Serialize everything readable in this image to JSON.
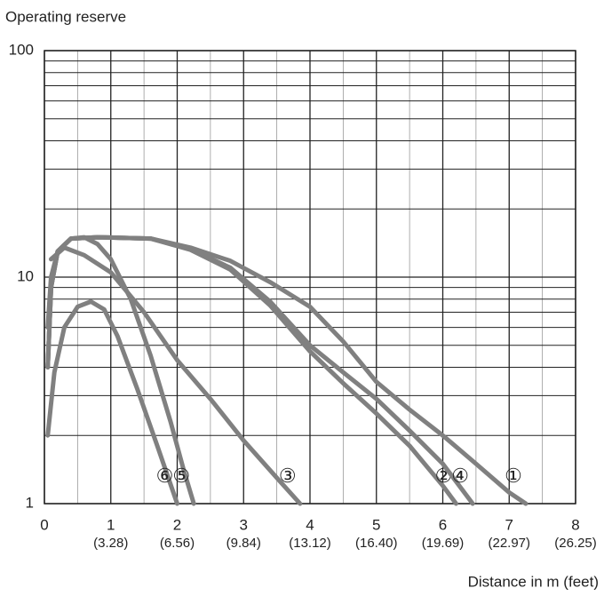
{
  "chart_data": {
    "type": "line",
    "ylabel": "Operating reserve",
    "xlabel": "Distance in m (feet)",
    "xlim": [
      0,
      8
    ],
    "xticks": [
      0,
      1,
      2,
      3,
      4,
      5,
      6,
      7,
      8
    ],
    "xtick_sublabels": [
      null,
      "(3.28)",
      "(6.56)",
      "(9.84)",
      "(13.12)",
      "(16.40)",
      "(19.69)",
      "(22.97)",
      "(26.25)"
    ],
    "ylim": [
      1,
      100
    ],
    "yticks": [
      1,
      10,
      100
    ],
    "log_y": true,
    "grid": true,
    "minor_grid": true,
    "series": [
      {
        "name": "①",
        "color": "#808080",
        "x": [
          0.05,
          0.1,
          0.2,
          0.4,
          0.8,
          1.6,
          2.2,
          2.8,
          3.4,
          4,
          4.5,
          5,
          5.5,
          6,
          6.5,
          7,
          7.25
        ],
        "values": [
          4,
          9,
          13,
          14.8,
          15,
          14.8,
          13.5,
          11.8,
          9.5,
          7.4,
          5.2,
          3.45,
          2.6,
          2.0,
          1.5,
          1.12,
          1
        ]
      },
      {
        "name": "②",
        "color": "#808080",
        "x": [
          0.05,
          0.1,
          0.2,
          0.4,
          0.8,
          1.6,
          2.2,
          2.8,
          3.4,
          4,
          4.5,
          5,
          5.5,
          6,
          6.2
        ],
        "values": [
          4,
          9,
          13,
          14.8,
          15,
          14.8,
          13.2,
          10.8,
          7.5,
          4.7,
          3.4,
          2.5,
          1.8,
          1.2,
          1
        ]
      },
      {
        "name": "③",
        "color": "#808080",
        "x": [
          0.1,
          0.3,
          0.6,
          1,
          1.5,
          2,
          2.5,
          3,
          3.5,
          3.85
        ],
        "values": [
          12,
          13.5,
          12.5,
          10.5,
          7,
          4.3,
          2.9,
          1.9,
          1.3,
          1
        ]
      },
      {
        "name": "④",
        "color": "#808080",
        "x": [
          0.05,
          0.1,
          0.2,
          0.4,
          0.8,
          1.6,
          2.2,
          2.8,
          3.4,
          4,
          4.5,
          5,
          5.5,
          6,
          6.45
        ],
        "values": [
          4,
          9,
          13,
          14.8,
          15,
          14.8,
          13.3,
          11,
          7.8,
          5,
          3.8,
          2.9,
          2.1,
          1.5,
          1
        ]
      },
      {
        "name": "⑤",
        "color": "#808080",
        "x": [
          0.05,
          0.1,
          0.2,
          0.4,
          0.6,
          0.8,
          1,
          1.3,
          1.6,
          1.9,
          2.1,
          2.25
        ],
        "values": [
          6,
          10,
          13,
          14.8,
          15,
          14,
          12,
          8,
          4.5,
          2.3,
          1.4,
          1
        ]
      },
      {
        "name": "⑥",
        "color": "#808080",
        "x": [
          0.05,
          0.15,
          0.3,
          0.5,
          0.7,
          0.9,
          1.1,
          1.4,
          1.7,
          2
        ],
        "values": [
          2,
          3.8,
          6,
          7.4,
          7.8,
          7.2,
          5.5,
          3.2,
          1.8,
          1
        ]
      }
    ]
  }
}
